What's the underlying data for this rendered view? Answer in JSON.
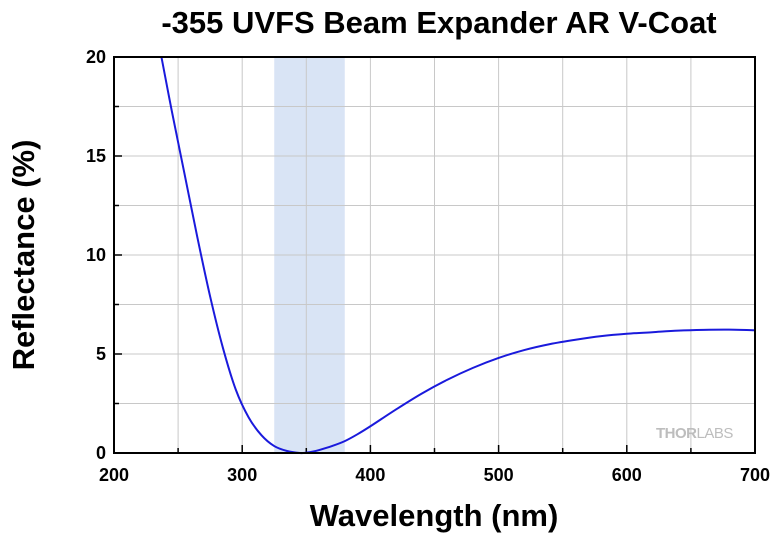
{
  "chart_data": {
    "type": "line",
    "title": "-355 UVFS Beam Expander AR V-Coat",
    "xlabel": "Wavelength (nm)",
    "ylabel": "Reflectance (%)",
    "xlim": [
      200,
      700
    ],
    "ylim": [
      0,
      20
    ],
    "xticks": [
      200,
      300,
      400,
      500,
      600,
      700
    ],
    "yticks": [
      0,
      5,
      10,
      15,
      20
    ],
    "grid": true,
    "highlight_band": {
      "x_start": 325,
      "x_end": 380,
      "color": "#d9e4f5"
    },
    "series": [
      {
        "color": "#1a1adc",
        "x": [
          237,
          245,
          255,
          265,
          275,
          285,
          295,
          305,
          315,
          325,
          335,
          345,
          350,
          355,
          360,
          370,
          380,
          390,
          400,
          420,
          440,
          460,
          480,
          500,
          520,
          540,
          560,
          580,
          600,
          620,
          640,
          660,
          680,
          700
        ],
        "y": [
          20.0,
          17.3,
          14.1,
          10.9,
          7.9,
          5.3,
          3.2,
          1.8,
          0.9,
          0.35,
          0.1,
          0.0,
          0.02,
          0.07,
          0.15,
          0.35,
          0.6,
          0.95,
          1.35,
          2.2,
          3.0,
          3.7,
          4.3,
          4.8,
          5.2,
          5.5,
          5.72,
          5.9,
          6.02,
          6.1,
          6.18,
          6.22,
          6.23,
          6.2
        ]
      }
    ],
    "watermark": {
      "part1": "THOR",
      "part2": "LABS"
    }
  }
}
